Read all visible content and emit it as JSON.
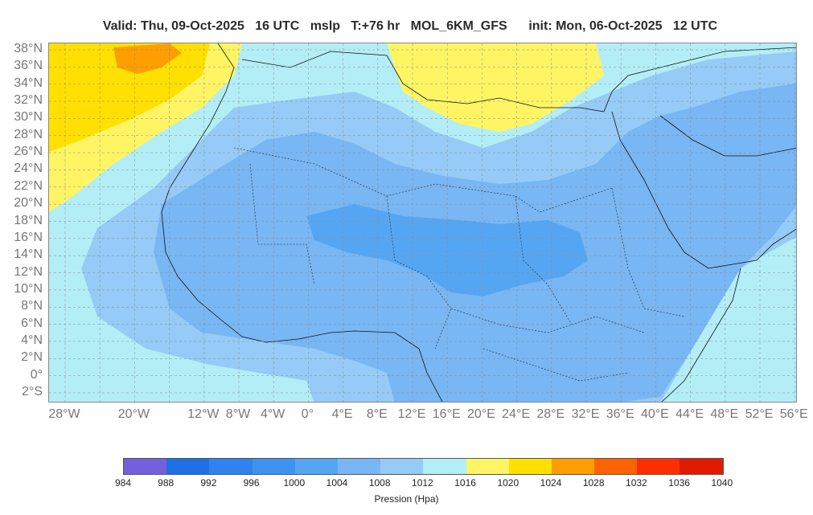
{
  "header": {
    "valid": "Valid: Thu, 09-Oct-2025   16 UTC",
    "field": "mslp",
    "lead": "T:+76 hr",
    "model": "MOL_6KM_GFS",
    "init": "init: Mon, 06-Oct-2025   12 UTC"
  },
  "map": {
    "lat_labels": [
      "38°N",
      "36°N",
      "34°N",
      "32°N",
      "30°N",
      "28°N",
      "26°N",
      "24°N",
      "22°N",
      "20°N",
      "18°N",
      "16°N",
      "14°N",
      "12°N",
      "10°N",
      "8°N",
      "6°N",
      "4°N",
      "2°N",
      "0°",
      "2°S"
    ],
    "lon_labels": [
      "28°W",
      "20°W",
      "12°W",
      "8°W",
      "4°W",
      "0°",
      "4°E",
      "8°E",
      "12°E",
      "16°E",
      "20°E",
      "24°E",
      "28°E",
      "32°E",
      "36°E",
      "40°E",
      "44°E",
      "48°E",
      "52°E",
      "56°E"
    ]
  },
  "colorbar": {
    "colors": [
      "#7460dc",
      "#1e6fe6",
      "#2f83ee",
      "#3e93f2",
      "#55a6f2",
      "#78b6f4",
      "#95cbf6",
      "#b3eef6",
      "#fff564",
      "#ffe000",
      "#ff9e00",
      "#ff6200",
      "#ff2e00",
      "#e21a00"
    ],
    "ticks": [
      "984",
      "988",
      "992",
      "996",
      "1000",
      "1004",
      "1008",
      "1012",
      "1016",
      "1020",
      "1024",
      "1028",
      "1032",
      "1036",
      "1040"
    ],
    "label": "Pression (Hpa)"
  }
}
